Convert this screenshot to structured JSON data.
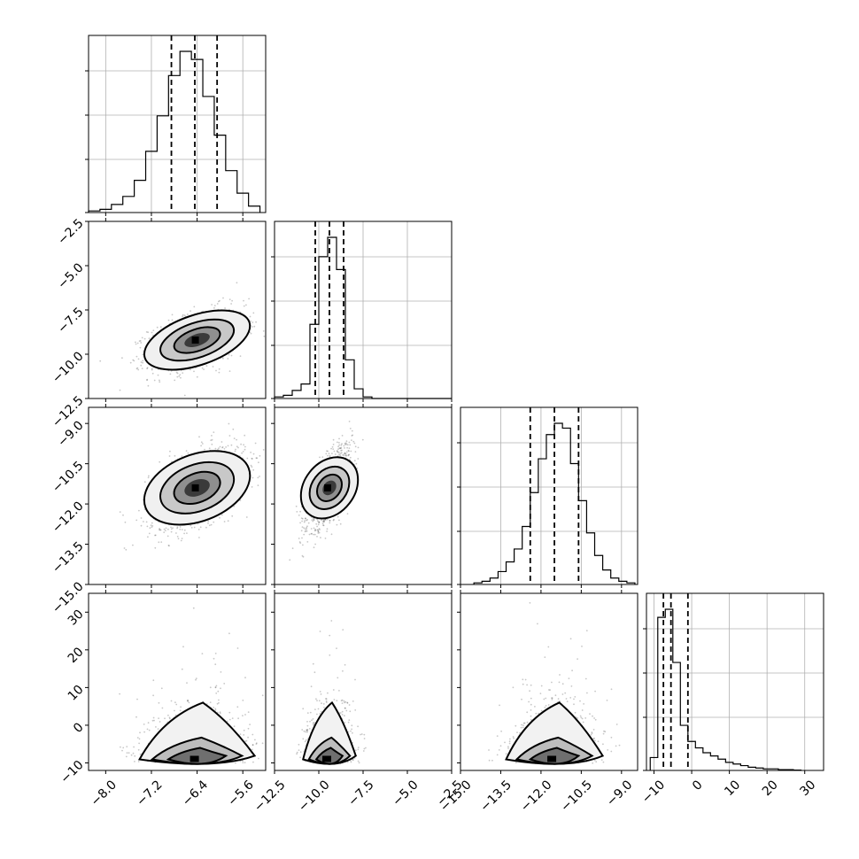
{
  "chart_data": {
    "type": "scatter",
    "kind": "corner",
    "title": "",
    "parameters": [
      {
        "name": "",
        "range": [
          -8.3,
          -5.2
        ],
        "ticks": [
          -8.0,
          -7.2,
          -6.4,
          -5.6
        ],
        "tick_labels": [
          "−8.0",
          "−7.2",
          "−6.4",
          "−5.6"
        ],
        "quantiles": [
          -6.85,
          -6.44,
          -6.05
        ],
        "hist": {
          "edges": [
            -8.3,
            -8.1,
            -7.9,
            -7.7,
            -7.5,
            -7.3,
            -7.1,
            -6.9,
            -6.7,
            -6.5,
            -6.3,
            -6.1,
            -5.9,
            -5.7,
            -5.5,
            -5.3
          ],
          "counts": [
            1,
            2,
            5,
            10,
            20,
            38,
            60,
            85,
            100,
            95,
            72,
            48,
            26,
            12,
            4
          ]
        }
      },
      {
        "name": "",
        "range": [
          -12.5,
          -2.5
        ],
        "ticks": [
          -12.5,
          -10.0,
          -7.5,
          -5.0,
          -2.5
        ],
        "tick_labels": [
          "−12.5",
          "−10.0",
          "−7.5",
          "−5.0",
          "−2.5"
        ],
        "quantiles": [
          -10.2,
          -9.4,
          -8.6
        ],
        "hist": {
          "edges": [
            -12.5,
            -12.0,
            -11.5,
            -11.0,
            -10.5,
            -10.0,
            -9.5,
            -9.0,
            -8.5,
            -8.0,
            -7.5,
            -7.0,
            -6.5,
            -6.0,
            -5.5,
            -5.0,
            -4.5,
            -4.0,
            -3.5,
            -3.0,
            -2.5
          ],
          "counts": [
            1,
            2,
            5,
            9,
            46,
            88,
            100,
            80,
            24,
            6,
            1,
            0,
            0,
            0,
            0,
            0,
            0,
            0,
            0,
            0
          ]
        }
      },
      {
        "name": "",
        "range": [
          -15.0,
          -8.4
        ],
        "ticks": [
          -15.0,
          -13.5,
          -12.0,
          -10.5,
          -9.0
        ],
        "tick_labels": [
          "−15.0",
          "−13.5",
          "−12.0",
          "−10.5",
          "−9.0"
        ],
        "quantiles": [
          -12.4,
          -11.5,
          -10.6
        ],
        "hist": {
          "edges": [
            -14.5,
            -14.2,
            -13.9,
            -13.6,
            -13.3,
            -13.0,
            -12.7,
            -12.4,
            -12.1,
            -11.8,
            -11.5,
            -11.2,
            -10.9,
            -10.6,
            -10.3,
            -10.0,
            -9.7,
            -9.4,
            -9.1,
            -8.8,
            -8.5
          ],
          "counts": [
            1,
            2,
            4,
            8,
            14,
            22,
            36,
            57,
            78,
            93,
            100,
            97,
            75,
            52,
            32,
            18,
            9,
            4,
            2,
            1
          ]
        }
      },
      {
        "name": "",
        "range": [
          -12,
          35
        ],
        "ticks": [
          -10,
          0,
          10,
          20,
          30
        ],
        "tick_labels": [
          "−10",
          "0",
          "10",
          "20",
          "30"
        ],
        "quantiles": [
          -7.5,
          -5.5,
          -1
        ],
        "hist": {
          "edges": [
            -11,
            -9,
            -7,
            -5,
            -3,
            -1,
            1,
            3,
            5,
            7,
            9,
            11,
            13,
            15,
            17,
            19,
            21,
            23,
            25,
            27,
            29
          ],
          "counts": [
            8,
            95,
            100,
            67,
            28,
            18,
            14,
            11,
            9,
            7,
            5,
            4,
            3,
            2,
            1.5,
            1,
            1,
            0.5,
            0.5,
            0.2
          ]
        }
      }
    ],
    "pairs": [
      {
        "x": 0,
        "y": 1,
        "mean": [
          -6.4,
          -9.2
        ],
        "sd": [
          0.42,
          0.85
        ],
        "rho": 0.45,
        "shape": "gauss"
      },
      {
        "x": 0,
        "y": 2,
        "mean": [
          -6.4,
          -11.4
        ],
        "sd": [
          0.42,
          0.75
        ],
        "rho": 0.5,
        "shape": "gauss"
      },
      {
        "x": 1,
        "y": 2,
        "mean": [
          -9.4,
          -11.4
        ],
        "sd": [
          0.62,
          0.75
        ],
        "rho": 0.7,
        "shape": "gauss"
      },
      {
        "x": 0,
        "y": 3,
        "mean": [
          -6.4,
          -6
        ],
        "sd": [
          0.42,
          3
        ],
        "rho": 0.05,
        "shape": "skew"
      },
      {
        "x": 1,
        "y": 3,
        "mean": [
          -9.4,
          -6
        ],
        "sd": [
          0.62,
          3
        ],
        "rho": 0.05,
        "shape": "skew"
      },
      {
        "x": 2,
        "y": 3,
        "mean": [
          -11.5,
          -6
        ],
        "sd": [
          0.75,
          3
        ],
        "rho": 0.05,
        "shape": "skew"
      }
    ],
    "grid": true,
    "legend": "none",
    "contour_levels": "1-2 sigma density contours with dashed 16/50/84 percent quantile lines"
  }
}
